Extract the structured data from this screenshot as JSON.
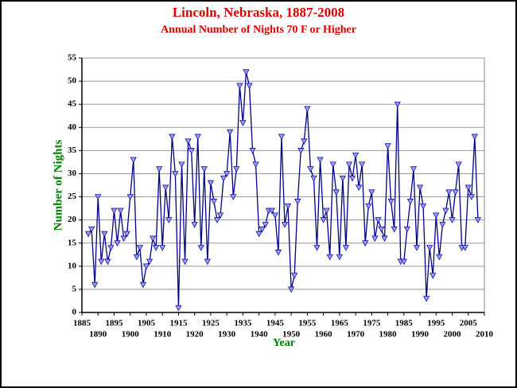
{
  "chart_data": {
    "type": "line",
    "title": "Lincoln, Nebraska, 1887-2008",
    "subtitle": "Annual Number of Nights 70 F or Higher",
    "x_label": "Year",
    "y_label": "Number of Nights",
    "x": [
      1887,
      1888,
      1889,
      1890,
      1891,
      1892,
      1893,
      1894,
      1895,
      1896,
      1897,
      1898,
      1899,
      1900,
      1901,
      1902,
      1903,
      1904,
      1905,
      1906,
      1907,
      1908,
      1909,
      1910,
      1911,
      1912,
      1913,
      1914,
      1915,
      1916,
      1917,
      1918,
      1919,
      1920,
      1921,
      1922,
      1923,
      1924,
      1925,
      1926,
      1927,
      1928,
      1929,
      1930,
      1931,
      1932,
      1933,
      1934,
      1935,
      1936,
      1937,
      1938,
      1939,
      1940,
      1941,
      1942,
      1943,
      1944,
      1945,
      1946,
      1947,
      1948,
      1949,
      1950,
      1951,
      1952,
      1953,
      1954,
      1955,
      1956,
      1957,
      1958,
      1959,
      1960,
      1961,
      1962,
      1963,
      1964,
      1965,
      1966,
      1967,
      1968,
      1969,
      1970,
      1971,
      1972,
      1973,
      1974,
      1975,
      1976,
      1977,
      1978,
      1979,
      1980,
      1981,
      1982,
      1983,
      1984,
      1985,
      1986,
      1987,
      1988,
      1989,
      1990,
      1991,
      1992,
      1993,
      1994,
      1995,
      1996,
      1997,
      1998,
      1999,
      2000,
      2001,
      2002,
      2003,
      2004,
      2005,
      2006,
      2007,
      2008
    ],
    "series": [
      {
        "name": "Nights 70 F or Higher",
        "color": "#00008b",
        "marker_color": "#9999ff",
        "values": [
          17,
          18,
          6,
          25,
          11,
          17,
          11,
          14,
          22,
          15,
          22,
          16,
          17,
          25,
          33,
          12,
          14,
          6,
          10,
          11,
          16,
          14,
          31,
          14,
          27,
          20,
          38,
          30,
          1,
          32,
          11,
          37,
          35,
          19,
          38,
          14,
          31,
          11,
          28,
          24,
          20,
          21,
          29,
          30,
          39,
          25,
          31,
          49,
          41,
          52,
          49,
          35,
          32,
          17,
          18,
          19,
          22,
          22,
          21,
          13,
          38,
          19,
          23,
          5,
          8,
          24,
          35,
          37,
          44,
          31,
          29,
          14,
          33,
          20,
          22,
          12,
          32,
          26,
          12,
          29,
          14,
          32,
          29,
          34,
          27,
          32,
          15,
          23,
          26,
          16,
          20,
          18,
          16,
          36,
          24,
          18,
          45,
          11,
          11,
          18,
          24,
          31,
          14,
          27,
          23,
          3,
          14,
          8,
          21,
          12,
          19,
          22,
          26,
          20,
          26,
          32,
          14,
          14,
          27,
          25,
          38,
          20
        ]
      }
    ],
    "xlim": [
      1885,
      2010
    ],
    "xticks": [
      1885,
      1890,
      1895,
      1900,
      1905,
      1910,
      1915,
      1920,
      1925,
      1930,
      1935,
      1940,
      1945,
      1950,
      1955,
      1960,
      1965,
      1970,
      1975,
      1980,
      1985,
      1990,
      1995,
      2000,
      2005,
      2010
    ],
    "ylim": [
      0,
      55
    ],
    "yticks": [
      0,
      5,
      10,
      15,
      20,
      25,
      30,
      35,
      40,
      45,
      50,
      55
    ],
    "grid": true
  }
}
